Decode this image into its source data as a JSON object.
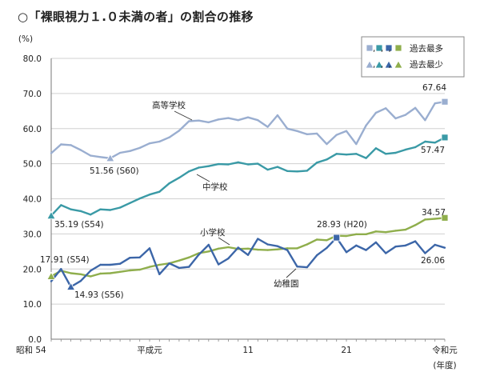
{
  "chart_data": {
    "type": "line",
    "title": "○「裸眼視力１.０未満の者」の割合の推移",
    "ylabel": "(%)",
    "xlabel": "(年度)",
    "ylim": [
      0,
      80
    ],
    "yticks": [
      "0.0",
      "10.0",
      "20.0",
      "30.0",
      "40.0",
      "50.0",
      "60.0",
      "70.0",
      "80.0"
    ],
    "x_tick_labels": [
      {
        "x": 0,
        "text": "昭和 54"
      },
      {
        "x": 10,
        "text": "平成元"
      },
      {
        "x": 20,
        "text": "11"
      },
      {
        "x": 30,
        "text": "21"
      },
      {
        "x": 40,
        "text": "令和元"
      }
    ],
    "legend": [
      {
        "text": "過去最多",
        "marker": "square"
      },
      {
        "text": "過去最少",
        "marker": "triangle"
      }
    ],
    "legend_prefix": ",,,",
    "series": [
      {
        "name": "高等学校",
        "color": "#9aaed0",
        "values": [
          53.0,
          55.5,
          55.3,
          53.9,
          52.3,
          51.9,
          51.56,
          53.1,
          53.6,
          54.5,
          55.8,
          56.3,
          57.5,
          59.4,
          62.1,
          62.3,
          61.8,
          62.6,
          63.0,
          62.4,
          63.2,
          62.4,
          60.5,
          63.8,
          60.0,
          59.3,
          58.4,
          58.6,
          55.6,
          58.2,
          59.3,
          55.6,
          60.9,
          64.5,
          65.8,
          62.9,
          63.9,
          65.9,
          62.4,
          67.2,
          67.64
        ]
      },
      {
        "name": "中学校",
        "color": "#3a9aa6",
        "values": [
          35.19,
          38.2,
          37.0,
          36.5,
          35.5,
          37.0,
          36.8,
          37.5,
          38.8,
          40.1,
          41.2,
          42.0,
          44.4,
          46.0,
          47.8,
          48.9,
          49.3,
          49.9,
          49.8,
          50.4,
          49.8,
          50.0,
          48.3,
          49.1,
          47.9,
          47.8,
          48.0,
          50.3,
          51.2,
          52.8,
          52.6,
          52.8,
          51.6,
          54.4,
          52.8,
          53.1,
          54.0,
          54.7,
          56.3,
          56.0,
          57.47
        ]
      },
      {
        "name": "小学校",
        "color": "#8fae4c",
        "values": [
          17.91,
          19.5,
          18.8,
          18.5,
          17.9,
          18.7,
          18.8,
          19.2,
          19.6,
          19.8,
          20.6,
          21.2,
          21.6,
          22.4,
          23.3,
          24.5,
          25.0,
          25.8,
          26.2,
          25.7,
          25.8,
          25.5,
          25.4,
          25.6,
          25.9,
          25.9,
          27.0,
          28.4,
          28.2,
          29.5,
          29.4,
          29.9,
          29.9,
          30.7,
          30.5,
          30.9,
          31.2,
          32.5,
          34.1,
          34.3,
          34.57
        ]
      },
      {
        "name": "幼稚園",
        "color": "#3c66a8",
        "values": [
          16.5,
          20.0,
          14.93,
          16.6,
          19.5,
          21.2,
          21.2,
          21.5,
          23.2,
          23.3,
          25.9,
          18.5,
          21.6,
          20.3,
          20.6,
          24.1,
          26.9,
          21.3,
          23.0,
          26.1,
          24.0,
          28.6,
          27.0,
          26.5,
          25.4,
          20.7,
          20.5,
          23.9,
          26.0,
          28.93,
          24.8,
          26.7,
          25.4,
          27.6,
          24.5,
          26.4,
          26.7,
          27.9,
          24.5,
          26.9,
          26.06
        ]
      }
    ],
    "annotations": [
      {
        "text": "高等学校"
      },
      {
        "text": "中学校"
      },
      {
        "text": "小学校"
      },
      {
        "text": "幼稚園"
      },
      {
        "text": "67.64"
      },
      {
        "text": "57.47"
      },
      {
        "text": "34.57"
      },
      {
        "text": "26.06"
      },
      {
        "text": "51.56 (S60)"
      },
      {
        "text": "35.19 (S54)"
      },
      {
        "text": "17.91 (S54)"
      },
      {
        "text": "14.93 (S56)"
      },
      {
        "text": "28.93 (H20)"
      }
    ],
    "max_markers": [
      {
        "series": 0,
        "index": 40
      },
      {
        "series": 1,
        "index": 40
      },
      {
        "series": 3,
        "index": 29
      },
      {
        "series": 2,
        "index": 40
      }
    ],
    "min_markers": [
      {
        "series": 0,
        "index": 6
      },
      {
        "series": 1,
        "index": 0
      },
      {
        "series": 3,
        "index": 2
      },
      {
        "series": 2,
        "index": 0
      }
    ]
  }
}
